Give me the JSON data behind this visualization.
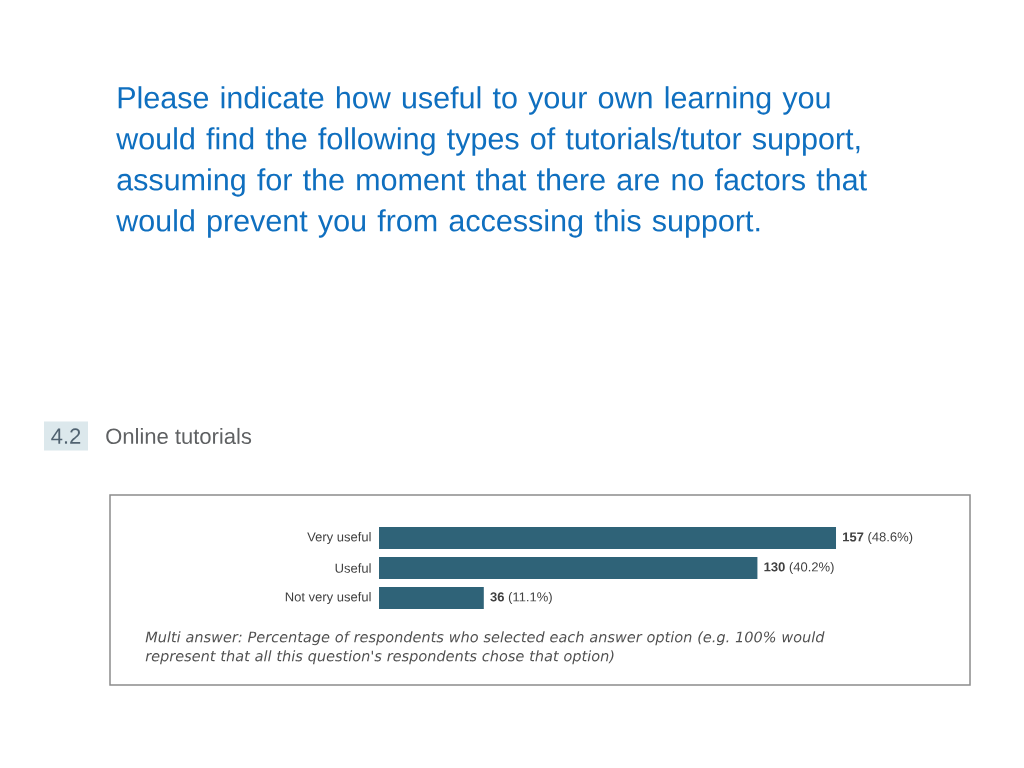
{
  "chart_data": {
    "type": "bar",
    "orientation": "horizontal",
    "title": "Please indicate how useful to your own learning you would find the following types of tutorials/tutor support, assuming for the moment that there are no factors that would prevent you from accessing this support.",
    "subtitle": "Online tutorials",
    "categories": [
      "Very useful",
      "Useful",
      "Not very useful"
    ],
    "values": [
      157,
      130,
      36
    ],
    "color": "#2f6378",
    "value_labels": [
      "**157** (48.6%)",
      "**130** (40.2%)",
      "**36** (11.1%)"
    ],
    "tick_labels": "y",
    "annotations": [
      "4.2",
      "Multi answer: Percentage of respondents who selected each answer option (e.g. 100% would represent that all this question's respondents chose that option)"
    ]
  }
}
